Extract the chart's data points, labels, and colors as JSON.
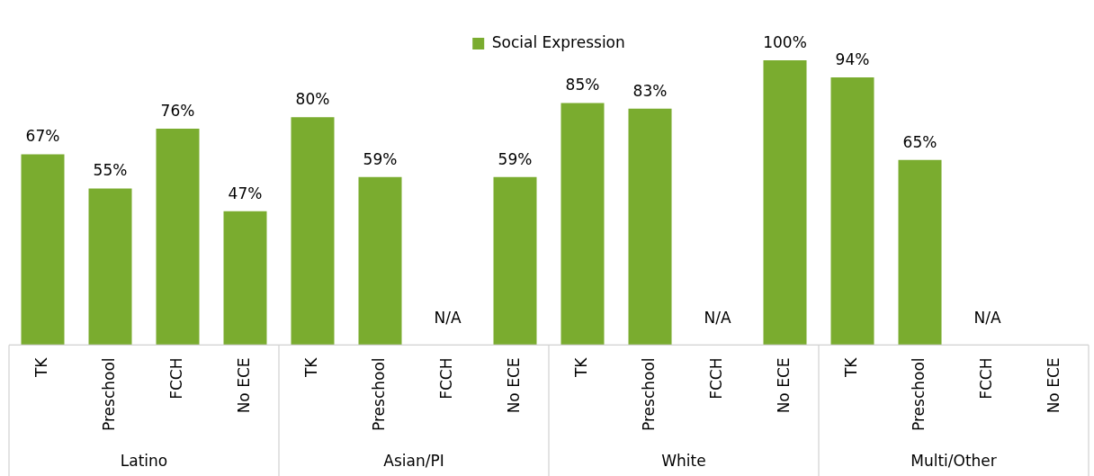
{
  "chart_data": {
    "type": "bar",
    "categories": [
      "TK",
      "Preschool",
      "FCCH",
      "No ECE",
      "TK",
      "Preschool",
      "FCCH",
      "No ECE",
      "TK",
      "Preschool",
      "FCCH",
      "No ECE",
      "TK",
      "Preschool",
      "FCCH",
      "No ECE"
    ],
    "series": [
      {
        "name": "Social Expression",
        "color": "#7aac2f",
        "values": [
          67,
          55,
          76,
          47,
          80,
          59,
          null,
          59,
          85,
          83,
          null,
          100,
          94,
          65,
          null,
          null
        ],
        "value_labels": [
          "67%",
          "55%",
          "76%",
          "47%",
          "80%",
          "59%",
          "N/A",
          "59%",
          "85%",
          "83%",
          "N/A",
          "100%",
          "94%",
          "65%",
          "N/A",
          null
        ]
      }
    ],
    "annotations": [
      "Latino",
      "Asian/PI",
      "White",
      "Multi/Other"
    ],
    "legend": "top",
    "grid": false
  }
}
